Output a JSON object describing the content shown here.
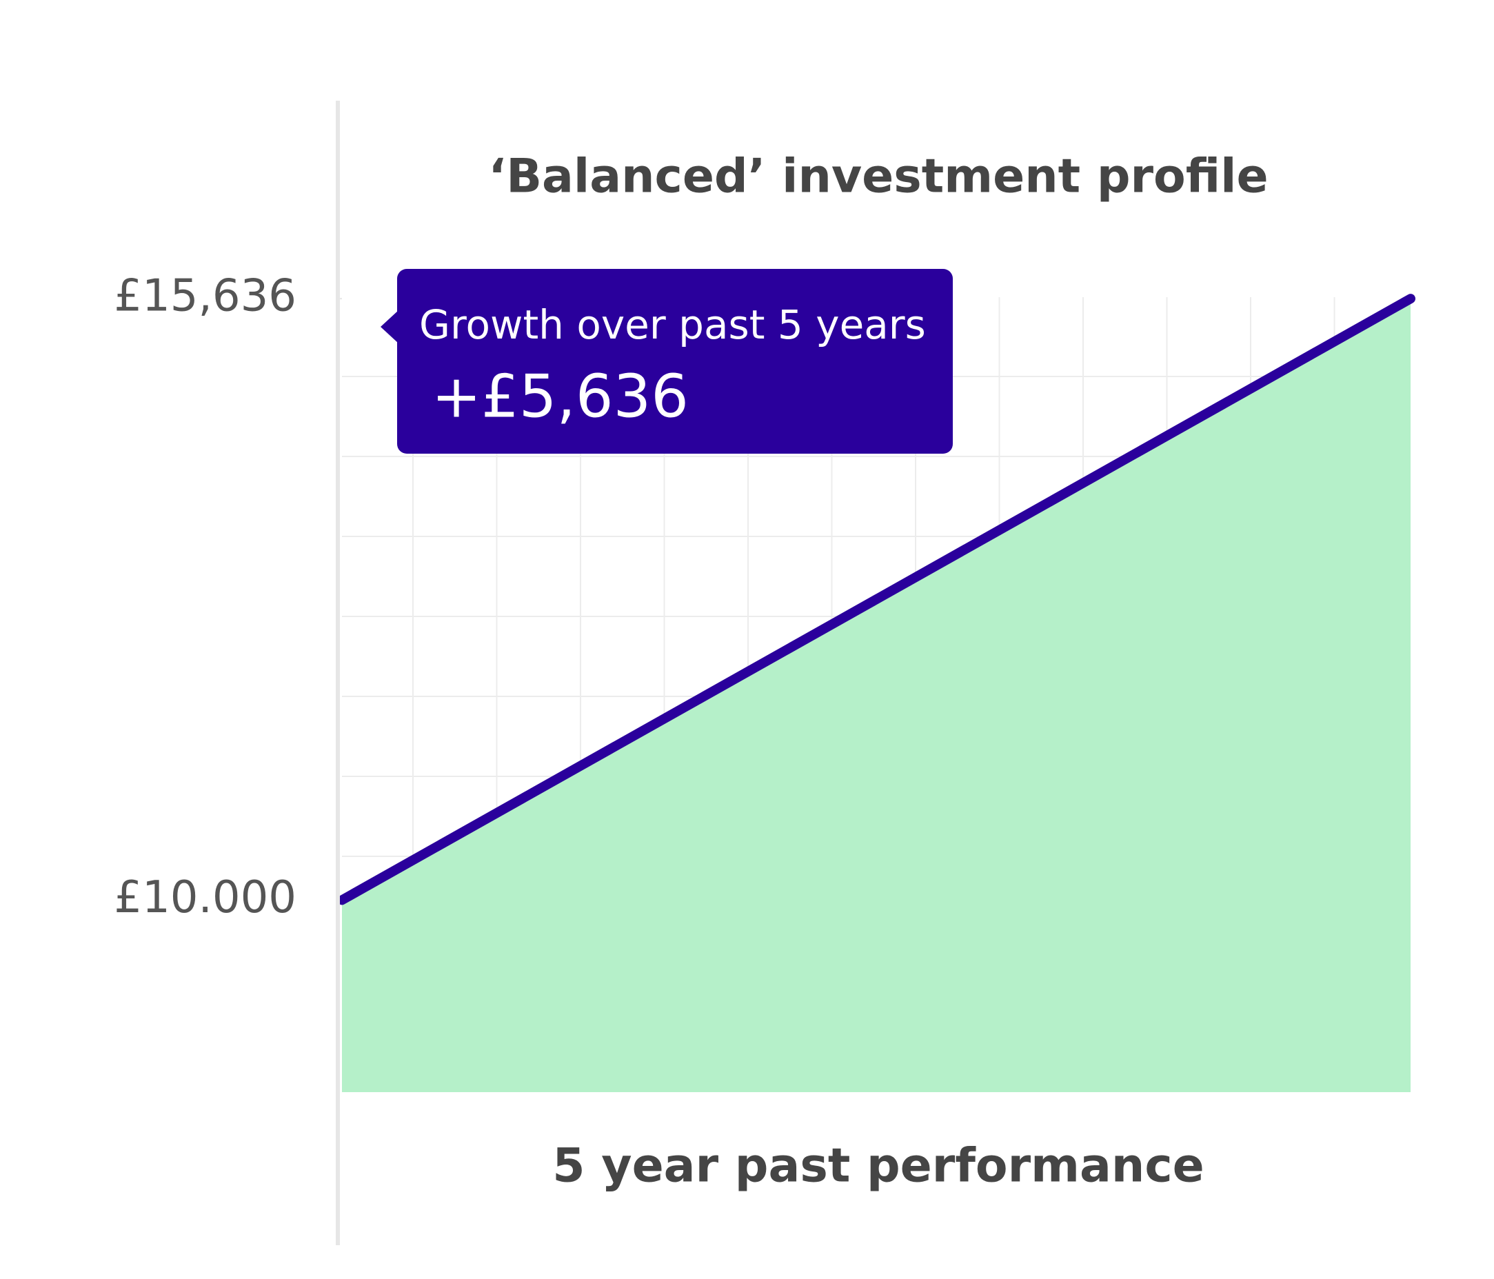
{
  "chart_data": {
    "type": "area",
    "title": "‘Balanced’ investment profile",
    "x_label": "5 year past performance",
    "categories": [
      null,
      null
    ],
    "values": [
      10000,
      15636
    ],
    "ylim": [
      8200,
      15650
    ],
    "yticks": [
      {
        "value": 10000,
        "label": "£10.000"
      },
      {
        "value": 15636,
        "label": "£15,636"
      }
    ],
    "line_color": "#2a009c",
    "area_color": "#b5f0c9",
    "grid": true,
    "annotation": {
      "title": "Growth over past 5 years",
      "value": "+£5,636"
    }
  }
}
